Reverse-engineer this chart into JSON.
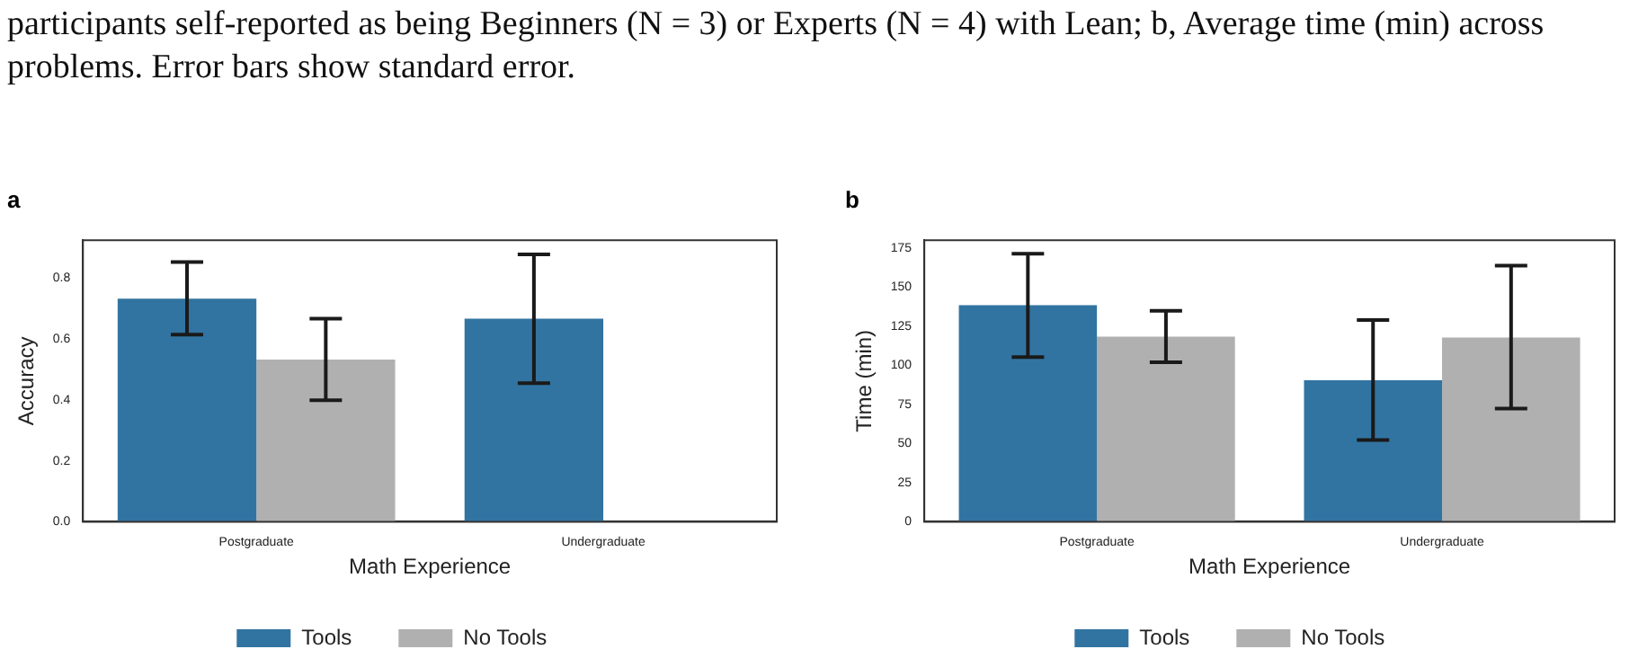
{
  "chart_data": [
    {
      "type": "bar",
      "title": "a",
      "annotations": [
        "participants self-reported as being Beginners (N = 3) or Experts (N = 4) with Lean; b, Average time (min) across problems. Error bars show standard error."
      ],
      "categories": [
        "Postgraduate",
        "Undergraduate"
      ],
      "xlabel": "Math Experience",
      "ylabel": "Accuracy",
      "series": [
        {
          "name": "Tools",
          "color": "#3274a1",
          "values": [
            0.733,
            0.667
          ],
          "errors": [
            [
              0.615,
              0.853
            ],
            [
              0.455,
              0.878
            ]
          ]
        },
        {
          "name": "No Tools",
          "color": "#b0b0b0",
          "values": [
            0.533,
            0
          ],
          "errors": [
            [
              0.399,
              0.667
            ],
            null
          ]
        }
      ],
      "ylim": [
        0,
        0.925
      ],
      "yticks": [
        {
          "value": 0,
          "label": "0.0"
        },
        {
          "value": 0.2,
          "label": "0.2"
        },
        {
          "value": 0.4,
          "label": "0.4"
        },
        {
          "value": 0.6,
          "label": "0.6"
        },
        {
          "value": 0.8,
          "label": "0.8"
        }
      ],
      "grid": false,
      "legend": "bottom"
    },
    {
      "type": "bar",
      "title": "b",
      "categories": [
        "Postgraduate",
        "Undergraduate"
      ],
      "xlabel": "Math Experience",
      "ylabel": "Time (min)",
      "series": [
        {
          "name": "Tools",
          "color": "#3274a1",
          "values": [
            138.5,
            90.5
          ],
          "errors": [
            [
              105.3,
              171.4
            ],
            [
              52.3,
              129
            ]
          ]
        },
        {
          "name": "No Tools",
          "color": "#b0b0b0",
          "values": [
            118.4,
            117.8
          ],
          "errors": [
            [
              102,
              134.9
            ],
            [
              72.4,
              163.8
            ]
          ]
        }
      ],
      "ylim": [
        0,
        180
      ],
      "yticks": [
        0,
        25,
        50,
        75,
        100,
        125,
        150,
        175
      ],
      "grid": false,
      "legend": "bottom"
    }
  ]
}
